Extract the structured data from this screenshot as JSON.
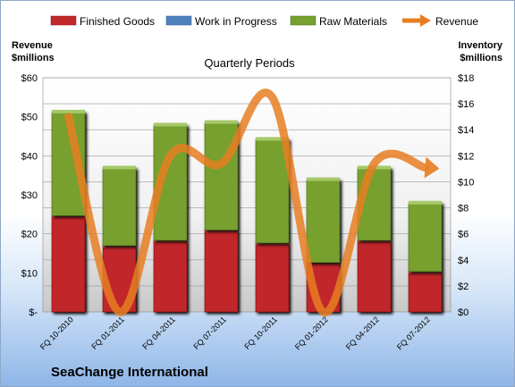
{
  "chart_data": {
    "type": "bar",
    "stacked": true,
    "title": "Quarterly Periods",
    "footer": "SeaChange International",
    "categories": [
      "FQ 10-2010",
      "FQ 01-2011",
      "FQ 04-2011",
      "FQ 07-2011",
      "FQ 10-2011",
      "FQ 01-2012",
      "FQ 04-2012",
      "FQ 07-2012"
    ],
    "series": [
      {
        "name": "Finished Goods",
        "axis": "right",
        "color": "#c0282a",
        "values": [
          7.4,
          5.1,
          5.5,
          6.3,
          5.3,
          3.8,
          5.5,
          3.1
        ]
      },
      {
        "name": "Work in Progress",
        "axis": "right",
        "color": "#4f81bd",
        "values": [
          0,
          0,
          0,
          0,
          0,
          0,
          0,
          0
        ]
      },
      {
        "name": "Raw Materials",
        "axis": "right",
        "color": "#77a02e",
        "values": [
          8.0,
          6.0,
          8.9,
          8.3,
          8.0,
          6.4,
          5.6,
          5.3
        ]
      },
      {
        "name": "Revenue",
        "axis": "left",
        "type": "line",
        "color": "#e67e22",
        "values": [
          50,
          0,
          40,
          38,
          55,
          0,
          38,
          37
        ]
      }
    ],
    "left_axis": {
      "label_line1": "Revenue",
      "label_line2": "$millions",
      "ylim": [
        0,
        60
      ],
      "ticks": [
        "$-",
        "$10",
        "$20",
        "$30",
        "$40",
        "$50",
        "$60"
      ]
    },
    "right_axis": {
      "label_line1": "Inventory",
      "label_line2": "$millions",
      "ylim": [
        0,
        18
      ],
      "ticks": [
        "$0",
        "$2",
        "$4",
        "$6",
        "$8",
        "$10",
        "$12",
        "$14",
        "$16",
        "$18"
      ]
    },
    "grid": true,
    "legend_position": "top"
  }
}
